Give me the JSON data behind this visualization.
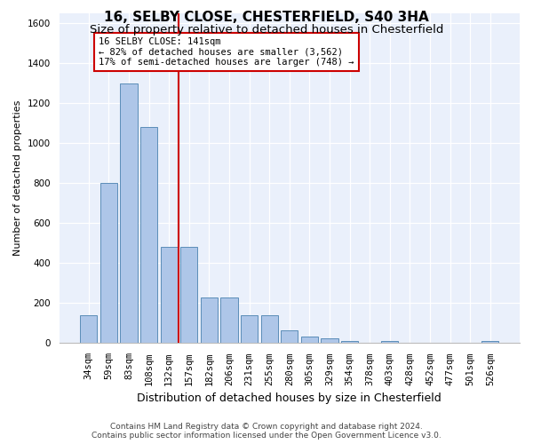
{
  "title": "16, SELBY CLOSE, CHESTERFIELD, S40 3HA",
  "subtitle": "Size of property relative to detached houses in Chesterfield",
  "xlabel": "Distribution of detached houses by size in Chesterfield",
  "ylabel": "Number of detached properties",
  "categories": [
    "34sqm",
    "59sqm",
    "83sqm",
    "108sqm",
    "132sqm",
    "157sqm",
    "182sqm",
    "206sqm",
    "231sqm",
    "255sqm",
    "280sqm",
    "305sqm",
    "329sqm",
    "354sqm",
    "378sqm",
    "403sqm",
    "428sqm",
    "452sqm",
    "477sqm",
    "501sqm",
    "526sqm"
  ],
  "values": [
    140,
    800,
    1300,
    1080,
    480,
    480,
    230,
    230,
    140,
    140,
    65,
    35,
    25,
    10,
    0,
    10,
    0,
    0,
    0,
    0,
    10
  ],
  "bar_color": "#aec6e8",
  "bar_edge_color": "#5b8db8",
  "annotation_text_line1": "16 SELBY CLOSE: 141sqm",
  "annotation_text_line2": "← 82% of detached houses are smaller (3,562)",
  "annotation_text_line3": "17% of semi-detached houses are larger (748) →",
  "vline_color": "#cc0000",
  "annotation_box_edge_color": "#cc0000",
  "ylim": [
    0,
    1650
  ],
  "yticks": [
    0,
    200,
    400,
    600,
    800,
    1000,
    1200,
    1400,
    1600
  ],
  "background_color": "#eaf0fb",
  "footer_line1": "Contains HM Land Registry data © Crown copyright and database right 2024.",
  "footer_line2": "Contains public sector information licensed under the Open Government Licence v3.0.",
  "title_fontsize": 11,
  "subtitle_fontsize": 9.5,
  "xlabel_fontsize": 9,
  "ylabel_fontsize": 8,
  "tick_fontsize": 7.5,
  "annotation_fontsize": 7.5,
  "footer_fontsize": 6.5
}
